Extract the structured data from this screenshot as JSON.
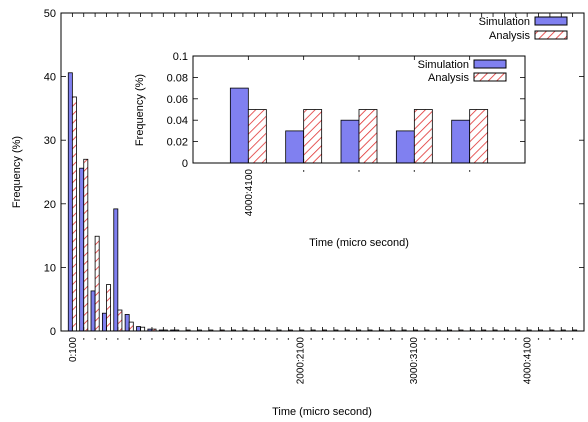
{
  "chart_data": [
    {
      "type": "bar",
      "xlabel": "Time (micro second)",
      "ylabel": "Frequency (%)",
      "ylim": [
        0,
        50
      ],
      "yticks": [
        "0",
        "10",
        "20",
        "30",
        "40",
        "50"
      ],
      "tick_labels": [
        {
          "index": 0,
          "text": "0:100"
        },
        {
          "index": 20,
          "text": "2000:2100"
        },
        {
          "index": 30,
          "text": "3000:3100"
        },
        {
          "index": 40,
          "text": "4000:4100"
        }
      ],
      "bin_count": 45,
      "legend": {
        "position": "top-right",
        "entries": [
          "Simulation",
          "Analysis"
        ]
      },
      "series": [
        {
          "name": "Simulation",
          "values": [
            40.6,
            25.6,
            6.3,
            2.8,
            19.2,
            2.6,
            0.7,
            0.3,
            0.1,
            0.05,
            0,
            0,
            0,
            0,
            0,
            0,
            0,
            0,
            0,
            0,
            0,
            0,
            0,
            0,
            0,
            0,
            0,
            0,
            0,
            0,
            0,
            0,
            0,
            0,
            0,
            0,
            0,
            0,
            0,
            0,
            0,
            0,
            0,
            0,
            0
          ]
        },
        {
          "name": "Analysis",
          "values": [
            36.8,
            27.0,
            14.9,
            7.3,
            3.3,
            1.4,
            0.6,
            0.3,
            0.1,
            0.05,
            0.05,
            0.05,
            0.05,
            0.05,
            0.05,
            0.05,
            0.05,
            0.05,
            0.05,
            0.05,
            0.05,
            0.05,
            0.05,
            0.05,
            0.05,
            0.05,
            0.05,
            0.05,
            0.05,
            0.05,
            0.05,
            0.05,
            0.05,
            0.05,
            0.05,
            0.05,
            0.05,
            0.05,
            0.05,
            0.05,
            0.05,
            0.05,
            0.05,
            0.05,
            0.05
          ]
        }
      ]
    },
    {
      "type": "bar",
      "xlabel": "Time (micro second)",
      "ylabel": "Frequency (%)",
      "ylim": [
        0,
        0.1
      ],
      "yticks": [
        "0",
        "0.02",
        "0.04",
        "0.06",
        "0.08",
        "0.1"
      ],
      "categories": [
        "4000:4100",
        "",
        "",
        "",
        ""
      ],
      "legend": {
        "position": "top-right",
        "entries": [
          "Simulation",
          "Analysis"
        ]
      },
      "series": [
        {
          "name": "Simulation",
          "values": [
            0.07,
            0.03,
            0.04,
            0.03,
            0.04
          ]
        },
        {
          "name": "Analysis",
          "values": [
            0.05,
            0.05,
            0.05,
            0.05,
            0.05
          ]
        }
      ]
    }
  ],
  "colors": {
    "simulation_fill": "#8080f0",
    "analysis_hatch": "#e03030",
    "axis": "#000000"
  }
}
